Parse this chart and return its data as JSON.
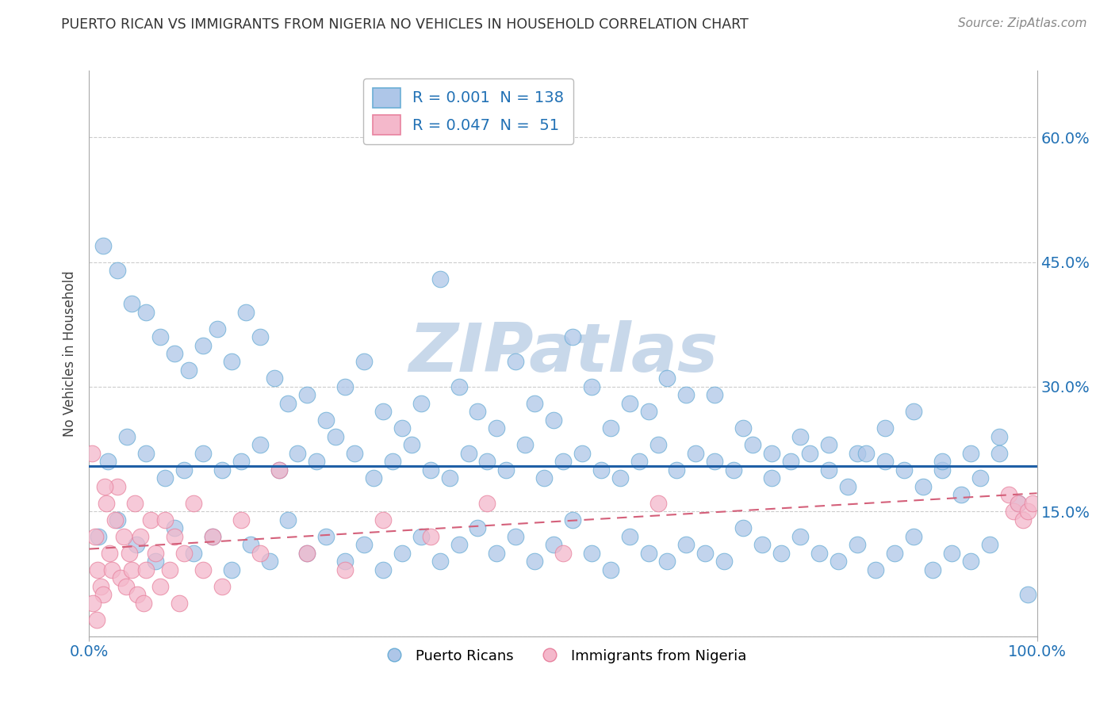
{
  "title": "PUERTO RICAN VS IMMIGRANTS FROM NIGERIA NO VEHICLES IN HOUSEHOLD CORRELATION CHART",
  "source": "Source: ZipAtlas.com",
  "ylabel": "No Vehicles in Household",
  "xlim": [
    0.0,
    100.0
  ],
  "ylim": [
    0.0,
    0.68
  ],
  "yticks": [
    0.0,
    0.15,
    0.3,
    0.45,
    0.6
  ],
  "blue_R": "0.001",
  "blue_N": "138",
  "pink_R": "0.047",
  "pink_N": "51",
  "blue_color": "#aec6e8",
  "blue_edge_color": "#6baed6",
  "pink_color": "#f4b8cb",
  "pink_edge_color": "#e8839f",
  "blue_line_color": "#1f5fa6",
  "pink_line_color": "#d4607a",
  "watermark": "ZIPatlas",
  "watermark_color": "#c8d8ea",
  "background_color": "#ffffff",
  "blue_line_y": 0.205,
  "pink_line_y_start": 0.105,
  "pink_line_y_end": 0.172,
  "blue_x": [
    1.5,
    3.0,
    4.5,
    6.0,
    7.5,
    9.0,
    10.5,
    12.0,
    13.5,
    15.0,
    16.5,
    18.0,
    19.5,
    21.0,
    23.0,
    25.0,
    27.0,
    29.0,
    31.0,
    33.0,
    35.0,
    37.0,
    39.0,
    41.0,
    43.0,
    45.0,
    47.0,
    49.0,
    51.0,
    53.0,
    55.0,
    57.0,
    59.0,
    61.0,
    63.0,
    66.0,
    69.0,
    72.0,
    75.0,
    78.0,
    81.0,
    84.0,
    87.0,
    90.0,
    93.0,
    96.0,
    99.0,
    2.0,
    4.0,
    6.0,
    8.0,
    10.0,
    12.0,
    14.0,
    16.0,
    18.0,
    20.0,
    22.0,
    24.0,
    26.0,
    28.0,
    30.0,
    32.0,
    34.0,
    36.0,
    38.0,
    40.0,
    42.0,
    44.0,
    46.0,
    48.0,
    50.0,
    52.0,
    54.0,
    56.0,
    58.0,
    60.0,
    62.0,
    64.0,
    66.0,
    68.0,
    70.0,
    72.0,
    74.0,
    76.0,
    78.0,
    80.0,
    82.0,
    84.0,
    86.0,
    88.0,
    90.0,
    92.0,
    94.0,
    96.0,
    98.0,
    1.0,
    3.0,
    5.0,
    7.0,
    9.0,
    11.0,
    13.0,
    15.0,
    17.0,
    19.0,
    21.0,
    23.0,
    25.0,
    27.0,
    29.0,
    31.0,
    33.0,
    35.0,
    37.0,
    39.0,
    41.0,
    43.0,
    45.0,
    47.0,
    49.0,
    51.0,
    53.0,
    55.0,
    57.0,
    59.0,
    61.0,
    63.0,
    65.0,
    67.0,
    69.0,
    71.0,
    73.0,
    75.0,
    77.0,
    79.0,
    81.0,
    83.0,
    85.0,
    87.0,
    89.0,
    91.0,
    93.0,
    95.0
  ],
  "blue_y": [
    0.47,
    0.44,
    0.4,
    0.39,
    0.36,
    0.34,
    0.32,
    0.35,
    0.37,
    0.33,
    0.39,
    0.36,
    0.31,
    0.28,
    0.29,
    0.26,
    0.3,
    0.33,
    0.27,
    0.25,
    0.28,
    0.43,
    0.3,
    0.27,
    0.25,
    0.33,
    0.28,
    0.26,
    0.36,
    0.3,
    0.25,
    0.28,
    0.27,
    0.31,
    0.29,
    0.29,
    0.25,
    0.22,
    0.24,
    0.23,
    0.22,
    0.25,
    0.27,
    0.2,
    0.22,
    0.24,
    0.05,
    0.21,
    0.24,
    0.22,
    0.19,
    0.2,
    0.22,
    0.2,
    0.21,
    0.23,
    0.2,
    0.22,
    0.21,
    0.24,
    0.22,
    0.19,
    0.21,
    0.23,
    0.2,
    0.19,
    0.22,
    0.21,
    0.2,
    0.23,
    0.19,
    0.21,
    0.22,
    0.2,
    0.19,
    0.21,
    0.23,
    0.2,
    0.22,
    0.21,
    0.2,
    0.23,
    0.19,
    0.21,
    0.22,
    0.2,
    0.18,
    0.22,
    0.21,
    0.2,
    0.18,
    0.21,
    0.17,
    0.19,
    0.22,
    0.16,
    0.12,
    0.14,
    0.11,
    0.09,
    0.13,
    0.1,
    0.12,
    0.08,
    0.11,
    0.09,
    0.14,
    0.1,
    0.12,
    0.09,
    0.11,
    0.08,
    0.1,
    0.12,
    0.09,
    0.11,
    0.13,
    0.1,
    0.12,
    0.09,
    0.11,
    0.14,
    0.1,
    0.08,
    0.12,
    0.1,
    0.09,
    0.11,
    0.1,
    0.09,
    0.13,
    0.11,
    0.1,
    0.12,
    0.1,
    0.09,
    0.11,
    0.08,
    0.1,
    0.12,
    0.08,
    0.1,
    0.09,
    0.11
  ],
  "pink_x": [
    0.3,
    0.6,
    0.9,
    1.2,
    1.5,
    1.8,
    2.1,
    2.4,
    2.7,
    3.0,
    3.3,
    3.6,
    3.9,
    4.2,
    4.5,
    4.8,
    5.1,
    5.4,
    5.7,
    6.0,
    6.5,
    7.0,
    7.5,
    8.0,
    8.5,
    9.0,
    9.5,
    10.0,
    11.0,
    12.0,
    13.0,
    14.0,
    16.0,
    18.0,
    20.0,
    23.0,
    27.0,
    31.0,
    36.0,
    42.0,
    50.0,
    60.0,
    97.0,
    97.5,
    98.0,
    98.5,
    99.0,
    99.5,
    0.4,
    0.8,
    1.6
  ],
  "pink_y": [
    0.22,
    0.12,
    0.08,
    0.06,
    0.05,
    0.16,
    0.1,
    0.08,
    0.14,
    0.18,
    0.07,
    0.12,
    0.06,
    0.1,
    0.08,
    0.16,
    0.05,
    0.12,
    0.04,
    0.08,
    0.14,
    0.1,
    0.06,
    0.14,
    0.08,
    0.12,
    0.04,
    0.1,
    0.16,
    0.08,
    0.12,
    0.06,
    0.14,
    0.1,
    0.2,
    0.1,
    0.08,
    0.14,
    0.12,
    0.16,
    0.1,
    0.16,
    0.17,
    0.15,
    0.16,
    0.14,
    0.15,
    0.16,
    0.04,
    0.02,
    0.18
  ]
}
